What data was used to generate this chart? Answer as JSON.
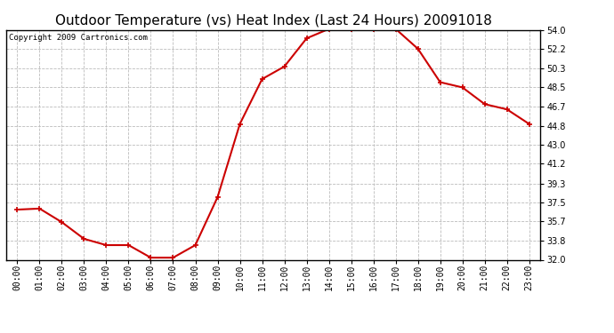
{
  "title": "Outdoor Temperature (vs) Heat Index (Last 24 Hours) 20091018",
  "copyright_text": "Copyright 2009 Cartronics.com",
  "x_labels": [
    "00:00",
    "01:00",
    "02:00",
    "03:00",
    "04:00",
    "05:00",
    "06:00",
    "07:00",
    "08:00",
    "09:00",
    "10:00",
    "11:00",
    "12:00",
    "13:00",
    "14:00",
    "15:00",
    "16:00",
    "17:00",
    "18:00",
    "19:00",
    "20:00",
    "21:00",
    "22:00",
    "23:00"
  ],
  "y_values": [
    36.8,
    36.9,
    35.6,
    34.0,
    33.4,
    33.4,
    32.2,
    32.2,
    33.4,
    38.0,
    45.0,
    49.3,
    50.5,
    53.2,
    54.1,
    54.1,
    54.1,
    54.1,
    52.2,
    49.0,
    48.5,
    46.9,
    46.4,
    45.0
  ],
  "line_color": "#cc0000",
  "marker": "+",
  "marker_size": 5,
  "marker_color": "#cc0000",
  "background_color": "#ffffff",
  "plot_bg_color": "#ffffff",
  "grid_color": "#bbbbbb",
  "grid_style": "--",
  "y_min": 32.0,
  "y_max": 54.0,
  "y_ticks": [
    32.0,
    33.8,
    35.7,
    37.5,
    39.3,
    41.2,
    43.0,
    44.8,
    46.7,
    48.5,
    50.3,
    52.2,
    54.0
  ],
  "title_fontsize": 11,
  "copyright_fontsize": 6.5,
  "tick_fontsize": 7,
  "line_width": 1.5
}
